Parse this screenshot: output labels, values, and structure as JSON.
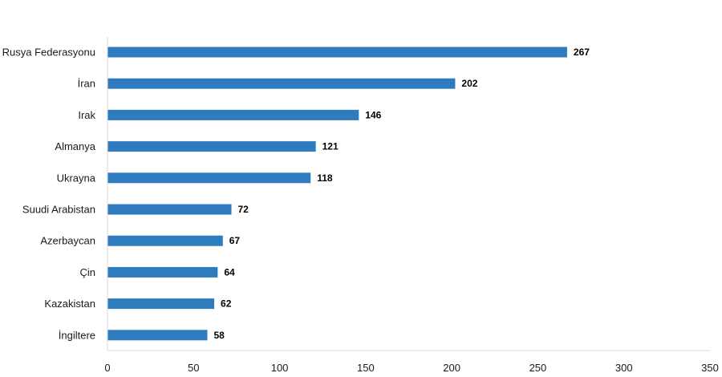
{
  "chart_data": {
    "type": "bar",
    "orientation": "horizontal",
    "categories": [
      "Rusya Federasyonu",
      "İran",
      "Irak",
      "Almanya",
      "Ukrayna",
      "Suudi Arabistan",
      "Azerbaycan",
      "Çin",
      "Kazakistan",
      "İngiltere"
    ],
    "values": [
      267,
      202,
      146,
      121,
      118,
      72,
      67,
      64,
      62,
      58
    ],
    "data_labels": [
      "267",
      "202",
      "146",
      "121",
      "118",
      "72",
      "67",
      "64",
      "62",
      "58"
    ],
    "xlim": [
      0,
      350
    ],
    "x_ticks": [
      0,
      50,
      100,
      150,
      200,
      250,
      300,
      350
    ],
    "x_tick_labels": [
      "0",
      "50",
      "100",
      "150",
      "200",
      "250",
      "300",
      "350"
    ],
    "title": "",
    "xlabel": "",
    "ylabel": "",
    "grid": false,
    "legend": "none",
    "bar_color": "#2E7BBE",
    "axis_color": "#D9D9D9"
  }
}
